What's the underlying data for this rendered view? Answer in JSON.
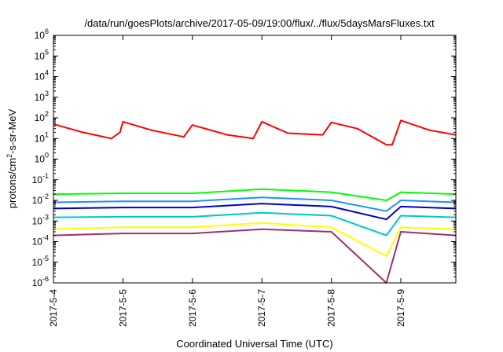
{
  "chart_data": {
    "type": "line",
    "title": "/data/run/goesPlots/archive/2017-05-09/19:00/flux/../flux/5daysMarsFluxes.txt",
    "xlabel": "Coordinated Universal Time (UTC)",
    "ylabel_main": "protons/cm",
    "ylabel_sup": "2",
    "ylabel_tail": "-s-sr-MeV",
    "y_scale": "log",
    "ylim": [
      1e-06,
      1000000.0
    ],
    "y_ticks": [
      {
        "value": 1e-06,
        "base": "10",
        "exp": "-6"
      },
      {
        "value": 1e-05,
        "base": "10",
        "exp": "-5"
      },
      {
        "value": 0.0001,
        "base": "10",
        "exp": "-4"
      },
      {
        "value": 0.001,
        "base": "10",
        "exp": "-3"
      },
      {
        "value": 0.01,
        "base": "10",
        "exp": "-2"
      },
      {
        "value": 0.1,
        "base": "10",
        "exp": "-1"
      },
      {
        "value": 1,
        "base": "10",
        "exp": "0"
      },
      {
        "value": 10,
        "base": "10",
        "exp": "1"
      },
      {
        "value": 100,
        "base": "10",
        "exp": "2"
      },
      {
        "value": 1000,
        "base": "10",
        "exp": "3"
      },
      {
        "value": 10000,
        "base": "10",
        "exp": "4"
      },
      {
        "value": 100000,
        "base": "10",
        "exp": "5"
      },
      {
        "value": 1000000,
        "base": "10",
        "exp": "6"
      }
    ],
    "xlim": [
      "2017-05-04T00:00",
      "2017-05-09T19:00"
    ],
    "x_ticks": [
      {
        "value": "2017-05-04T00:00",
        "label": "2017-5-4"
      },
      {
        "value": "2017-05-05T00:00",
        "label": "2017-5-5"
      },
      {
        "value": "2017-05-06T00:00",
        "label": "2017-5-6"
      },
      {
        "value": "2017-05-07T00:00",
        "label": "2017-5-7"
      },
      {
        "value": "2017-05-08T00:00",
        "label": "2017-5-8"
      },
      {
        "value": "2017-05-09T00:00",
        "label": "2017-5-9"
      }
    ],
    "grid": false,
    "legend": "none",
    "series": [
      {
        "color": "#ff0000",
        "x": [
          "2017-05-04T00:00",
          "2017-05-04T10:00",
          "2017-05-04T20:00",
          "2017-05-04T23:00",
          "2017-05-05T00:00",
          "2017-05-05T10:00",
          "2017-05-05T21:00",
          "2017-05-06T00:00",
          "2017-05-06T12:00",
          "2017-05-06T21:00",
          "2017-05-07T00:00",
          "2017-05-07T09:00",
          "2017-05-07T21:00",
          "2017-05-08T00:00",
          "2017-05-08T09:00",
          "2017-05-08T19:00",
          "2017-05-08T21:00",
          "2017-05-09T00:00",
          "2017-05-09T10:00",
          "2017-05-09T19:00"
        ],
        "y": [
          50,
          20,
          10,
          20,
          65,
          25,
          12,
          45,
          15,
          10,
          65,
          18,
          15,
          60,
          30,
          5,
          5,
          75,
          25,
          15
        ]
      },
      {
        "color": "#00ff00",
        "x": [
          "2017-05-04T00:00",
          "2017-05-05T00:00",
          "2017-05-06T00:00",
          "2017-05-07T00:00",
          "2017-05-08T00:00",
          "2017-05-08T19:00",
          "2017-05-09T00:00",
          "2017-05-09T19:00"
        ],
        "y": [
          0.02,
          0.022,
          0.022,
          0.035,
          0.025,
          0.01,
          0.025,
          0.02
        ]
      },
      {
        "color": "#1e90ff",
        "x": [
          "2017-05-04T00:00",
          "2017-05-05T00:00",
          "2017-05-06T00:00",
          "2017-05-07T00:00",
          "2017-05-08T00:00",
          "2017-05-08T19:00",
          "2017-05-09T00:00",
          "2017-05-09T19:00"
        ],
        "y": [
          0.008,
          0.009,
          0.009,
          0.014,
          0.01,
          0.003,
          0.01,
          0.008
        ]
      },
      {
        "color": "#0000cd",
        "x": [
          "2017-05-04T00:00",
          "2017-05-05T00:00",
          "2017-05-06T00:00",
          "2017-05-07T00:00",
          "2017-05-08T00:00",
          "2017-05-08T19:00",
          "2017-05-09T00:00",
          "2017-05-09T19:00"
        ],
        "y": [
          0.004,
          0.0045,
          0.0045,
          0.007,
          0.005,
          0.0012,
          0.005,
          0.004
        ]
      },
      {
        "color": "#00c8c8",
        "x": [
          "2017-05-04T00:00",
          "2017-05-05T00:00",
          "2017-05-06T00:00",
          "2017-05-07T00:00",
          "2017-05-08T00:00",
          "2017-05-08T19:00",
          "2017-05-09T00:00",
          "2017-05-09T19:00"
        ],
        "y": [
          0.0015,
          0.0016,
          0.0016,
          0.0025,
          0.0018,
          0.0002,
          0.0018,
          0.0015
        ]
      },
      {
        "color": "#ffff00",
        "x": [
          "2017-05-04T00:00",
          "2017-05-05T00:00",
          "2017-05-06T00:00",
          "2017-05-07T00:00",
          "2017-05-08T00:00",
          "2017-05-08T19:00",
          "2017-05-09T00:00",
          "2017-05-09T19:00"
        ],
        "y": [
          0.0004,
          0.0005,
          0.0005,
          0.0008,
          0.0005,
          2e-05,
          0.0005,
          0.0004
        ]
      },
      {
        "color": "#a0306a",
        "x": [
          "2017-05-04T00:00",
          "2017-05-05T00:00",
          "2017-05-06T00:00",
          "2017-05-07T00:00",
          "2017-05-08T00:00",
          "2017-05-08T19:00",
          "2017-05-09T00:00",
          "2017-05-09T19:00"
        ],
        "y": [
          0.0002,
          0.00025,
          0.00025,
          0.0004,
          0.0003,
          1e-06,
          0.0003,
          0.0002
        ]
      }
    ]
  }
}
